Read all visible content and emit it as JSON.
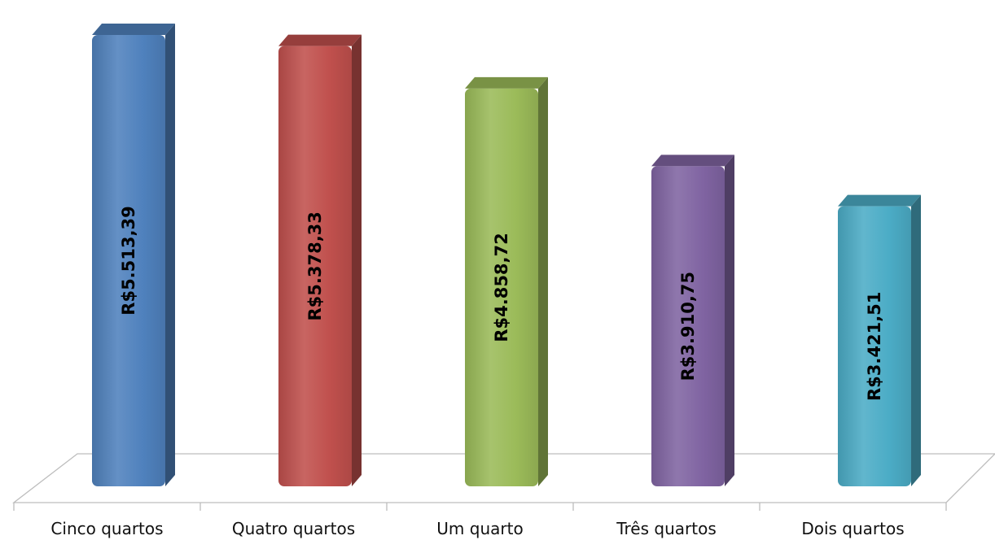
{
  "chart_data": {
    "type": "bar",
    "style": "3d-column",
    "categories": [
      "Cinco quartos",
      "Quatro quartos",
      "Um quarto",
      "Três quartos",
      "Dois quartos"
    ],
    "values": [
      5513.39,
      5378.33,
      4858.72,
      3910.75,
      3421.51
    ],
    "data_labels": [
      "R$5.513,39",
      "R$5.378,33",
      "R$4.858,72",
      "R$3.910,75",
      "R$3.421,51"
    ],
    "colors": [
      "#4F81BD",
      "#C0504D",
      "#9BBB59",
      "#8064A2",
      "#4BACC6"
    ],
    "title": "",
    "xlabel": "",
    "ylabel": "",
    "legend": "none",
    "grid": false
  }
}
